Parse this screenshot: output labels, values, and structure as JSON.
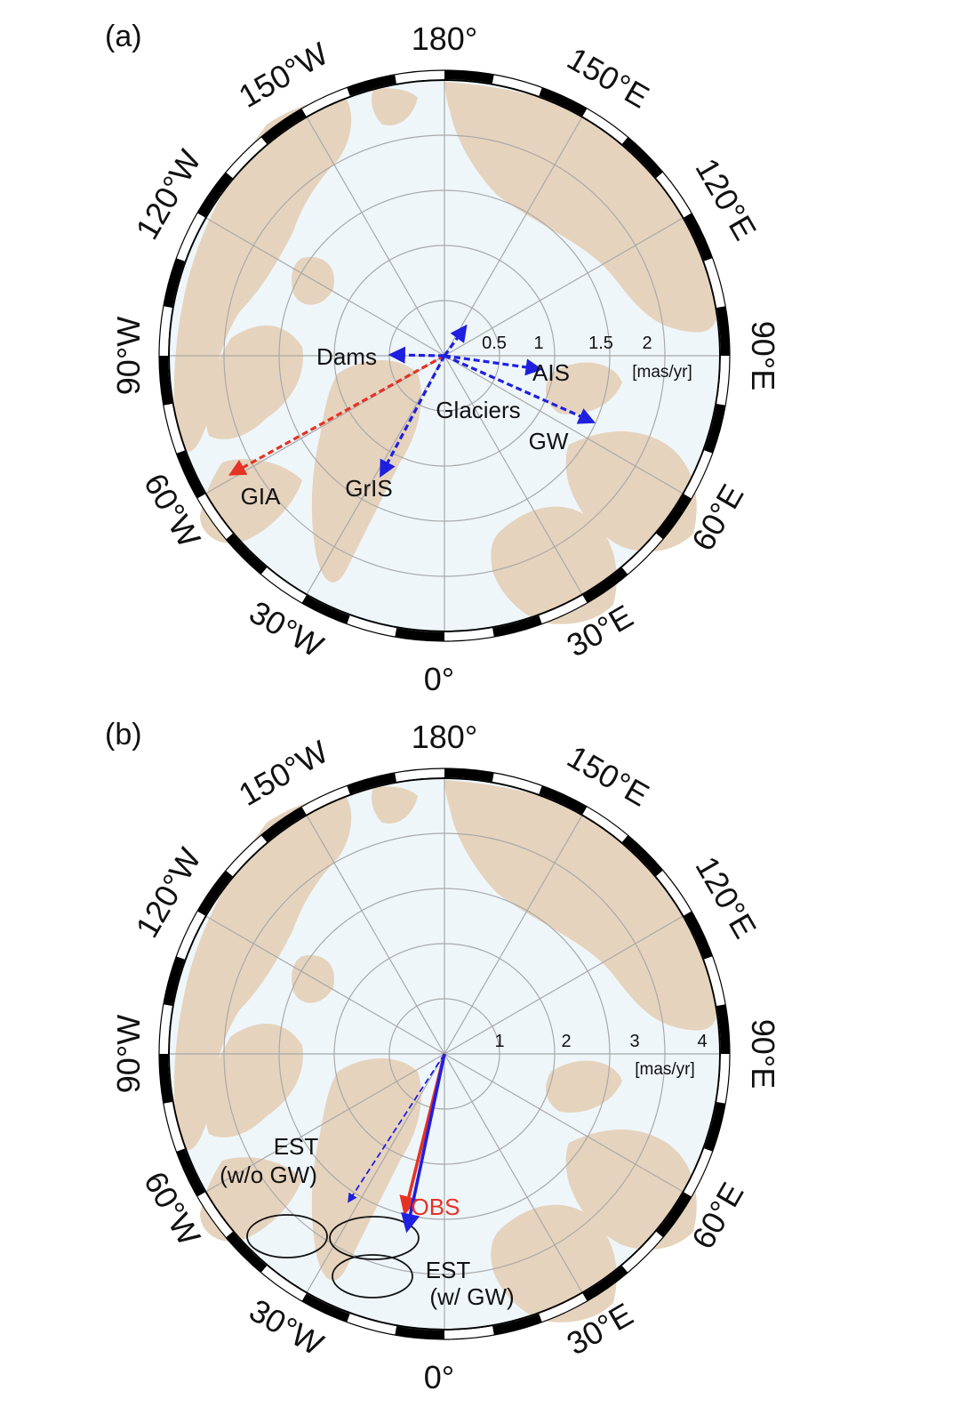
{
  "colors": {
    "ocean": "#eef6fa",
    "land": "#e6d3bd",
    "grid": "#a9a9a9",
    "frame": "#000000",
    "red": "#e53225",
    "blue": "#1f1fe0"
  },
  "panels": [
    {
      "id": "a",
      "label": "(a)",
      "lon_labels": {
        "lon_180": "180°",
        "lon_150w": "150°W",
        "lon_150e": "150°E",
        "lon_120w": "120°W",
        "lon_120e": "120°E",
        "lon_90w": "90°W",
        "lon_90e": "90°E",
        "lon_60w": "60°W",
        "lon_60e": "60°E",
        "lon_30w": "30°W",
        "lon_30e": "30°E",
        "lon_0": "0°"
      },
      "scale": {
        "unit": "[mas/yr]",
        "rings": [
          0.5,
          1,
          1.5,
          2
        ],
        "ring_labels": [
          "0.5",
          "1",
          "1.5",
          "2"
        ],
        "max": 2.5
      },
      "vectors": [
        {
          "name": "GIA",
          "label": "GIA",
          "magnitude": 2.21,
          "direction_deg": -61,
          "color": "red",
          "style": "dashed"
        },
        {
          "name": "GrIS",
          "label": "GrIS",
          "magnitude": 1.22,
          "direction_deg": -28,
          "color": "blue",
          "style": "dashed"
        },
        {
          "name": "Dams",
          "label": "Dams",
          "magnitude": 0.48,
          "direction_deg": -91,
          "color": "blue",
          "style": "dashed"
        },
        {
          "name": "AIS",
          "label": "AIS",
          "magnitude": 0.87,
          "direction_deg": 82,
          "color": "blue",
          "style": "dashed"
        },
        {
          "name": "Glaciers",
          "label": "Glaciers",
          "magnitude": 0.32,
          "direction_deg": 144,
          "color": "blue",
          "style": "dashed"
        },
        {
          "name": "GW",
          "label": "GW",
          "magnitude": 1.47,
          "direction_deg": 66,
          "color": "blue",
          "style": "dashed"
        }
      ]
    },
    {
      "id": "b",
      "label": "(b)",
      "lon_labels": {
        "lon_180": "180°",
        "lon_150w": "150°W",
        "lon_150e": "150°E",
        "lon_120w": "120°W",
        "lon_120e": "120°E",
        "lon_90w": "90°W",
        "lon_90e": "90°E",
        "lon_60w": "60°W",
        "lon_60e": "60°E",
        "lon_30w": "30°W",
        "lon_30e": "30°E",
        "lon_0": "0°"
      },
      "scale": {
        "unit": "[mas/yr]",
        "rings": [
          1,
          2,
          3,
          4
        ],
        "ring_labels": [
          "1",
          "2",
          "3",
          "4"
        ],
        "max": 4.2
      },
      "vectors": [
        {
          "name": "EST-wo-GW",
          "label": "EST",
          "label2": "(w/o GW)",
          "magnitude": 3.19,
          "direction_deg": -33,
          "color": "blue",
          "style": "thin-dashed"
        },
        {
          "name": "OBS",
          "label": "OBS",
          "magnitude": 2.95,
          "direction_deg": -14,
          "color": "red",
          "style": "solid"
        },
        {
          "name": "EST-w-GW",
          "label": "EST",
          "label2": "(w/ GW)",
          "magnitude": 3.25,
          "direction_deg": -12,
          "color": "blue",
          "style": "solid"
        }
      ]
    }
  ]
}
